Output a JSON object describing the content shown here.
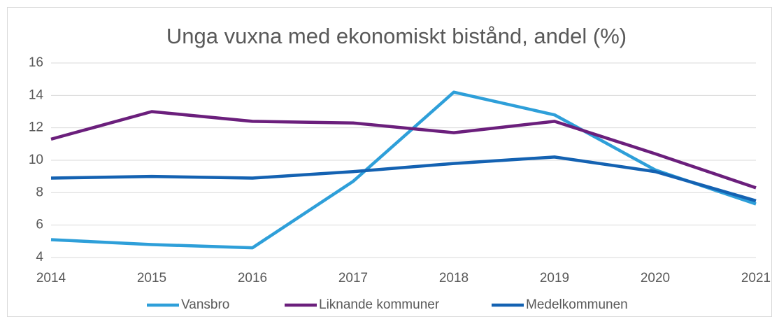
{
  "chart_data": {
    "type": "line",
    "title": "Unga vuxna med ekonomiskt bistånd, andel (%)",
    "categories": [
      "2014",
      "2015",
      "2016",
      "2017",
      "2018",
      "2019",
      "2020",
      "2021"
    ],
    "series": [
      {
        "name": "Vansbro",
        "color": "#2e9fd9",
        "values": [
          5.1,
          4.8,
          4.6,
          8.7,
          14.2,
          12.8,
          9.4,
          7.3
        ]
      },
      {
        "name": "Liknande kommuner",
        "color": "#6b1f7c",
        "values": [
          11.3,
          13.0,
          12.4,
          12.3,
          11.7,
          12.4,
          10.4,
          8.3
        ]
      },
      {
        "name": "Medelkommunen",
        "color": "#1462b2",
        "values": [
          8.9,
          9.0,
          8.9,
          9.3,
          9.8,
          10.2,
          9.3,
          7.5
        ]
      }
    ],
    "ylim": [
      4,
      16
    ],
    "yticks": [
      4,
      6,
      8,
      10,
      12,
      14,
      16
    ],
    "grid": true,
    "legend": "bottom"
  }
}
